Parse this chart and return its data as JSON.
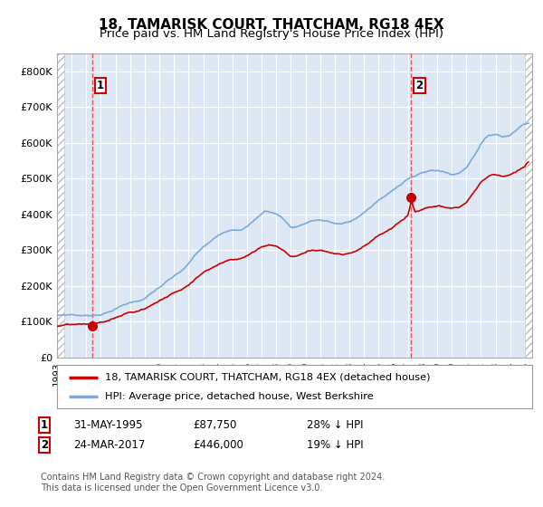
{
  "title": "18, TAMARISK COURT, THATCHAM, RG18 4EX",
  "subtitle": "Price paid vs. HM Land Registry's House Price Index (HPI)",
  "ylabel_ticks": [
    "£0",
    "£100K",
    "£200K",
    "£300K",
    "£400K",
    "£500K",
    "£600K",
    "£700K",
    "£800K"
  ],
  "ytick_values": [
    0,
    100000,
    200000,
    300000,
    400000,
    500000,
    600000,
    700000,
    800000
  ],
  "ylim": [
    0,
    850000
  ],
  "xlim_start": 1993.0,
  "xlim_end": 2025.5,
  "legend_line1": "18, TAMARISK COURT, THATCHAM, RG18 4EX (detached house)",
  "legend_line2": "HPI: Average price, detached house, West Berkshire",
  "point1_date": "31-MAY-1995",
  "point1_price": "£87,750",
  "point1_hpi": "28% ↓ HPI",
  "point1_x": 1995.42,
  "point1_y": 87750,
  "point2_date": "24-MAR-2017",
  "point2_price": "£446,000",
  "point2_hpi": "19% ↓ HPI",
  "point2_x": 2017.23,
  "point2_y": 446000,
  "footer": "Contains HM Land Registry data © Crown copyright and database right 2024.\nThis data is licensed under the Open Government Licence v3.0.",
  "line_color_red": "#cc0000",
  "line_color_blue": "#7aaadd",
  "point_color": "#cc0000",
  "vline_color": "#ee3333",
  "bg_color": "#dde8f4",
  "hatch_color": "#bbbbbb",
  "grid_color": "#ffffff",
  "title_fontsize": 11,
  "subtitle_fontsize": 9.5
}
